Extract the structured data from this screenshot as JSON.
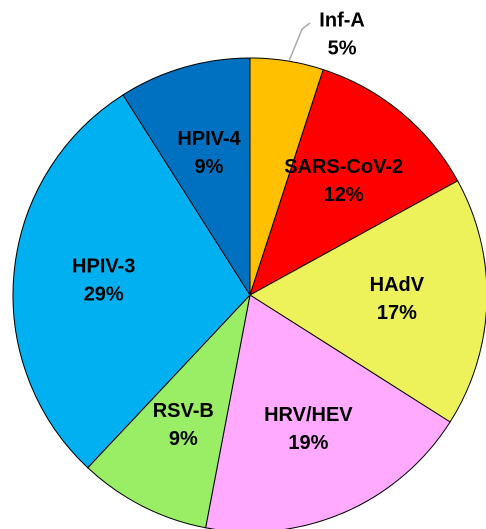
{
  "chart_data": {
    "type": "pie",
    "categories": [
      "Inf-A",
      "SARS-CoV-2",
      "HAdV",
      "HRV/HEV",
      "RSV-B",
      "HPIV-3",
      "HPIV-4"
    ],
    "values": [
      5,
      12,
      17,
      19,
      9,
      29,
      9
    ],
    "value_labels": [
      "5%",
      "12%",
      "17%",
      "19%",
      "9%",
      "29%",
      "9%"
    ],
    "colors": [
      "#FFC000",
      "#FF0000",
      "#EEF25A",
      "#FFAAFF",
      "#99EE66",
      "#00B0F0",
      "#0070C0"
    ]
  }
}
